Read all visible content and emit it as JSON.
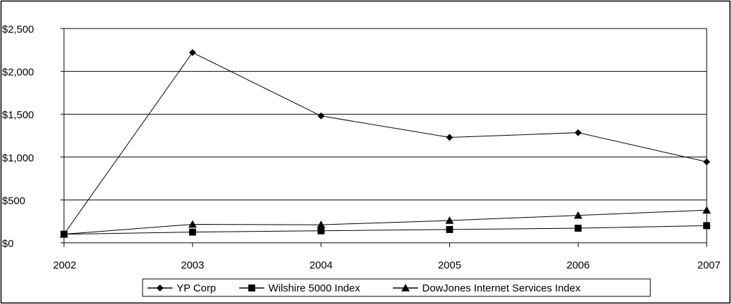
{
  "chart_data": {
    "type": "line",
    "x": [
      "2002",
      "2003",
      "2004",
      "2005",
      "2006",
      "2007"
    ],
    "y_ticks": [
      "$0",
      "$500",
      "$1,000",
      "$1,500",
      "$2,000",
      "$2,500"
    ],
    "y_tick_values": [
      0,
      500,
      1000,
      1500,
      2000,
      2500
    ],
    "ylim": [
      0,
      2500
    ],
    "grid": "horizontal",
    "legend_position": "bottom",
    "series": [
      {
        "name": "YP Corp",
        "marker": "diamond",
        "values": [
          100,
          2220,
          1480,
          1230,
          1285,
          945
        ]
      },
      {
        "name": "Wilshire 5000 Index",
        "marker": "square",
        "values": [
          100,
          125,
          140,
          155,
          170,
          200
        ]
      },
      {
        "name": "DowJones Internet  Services Index",
        "marker": "triangle",
        "values": [
          100,
          215,
          210,
          260,
          320,
          380
        ]
      }
    ]
  }
}
